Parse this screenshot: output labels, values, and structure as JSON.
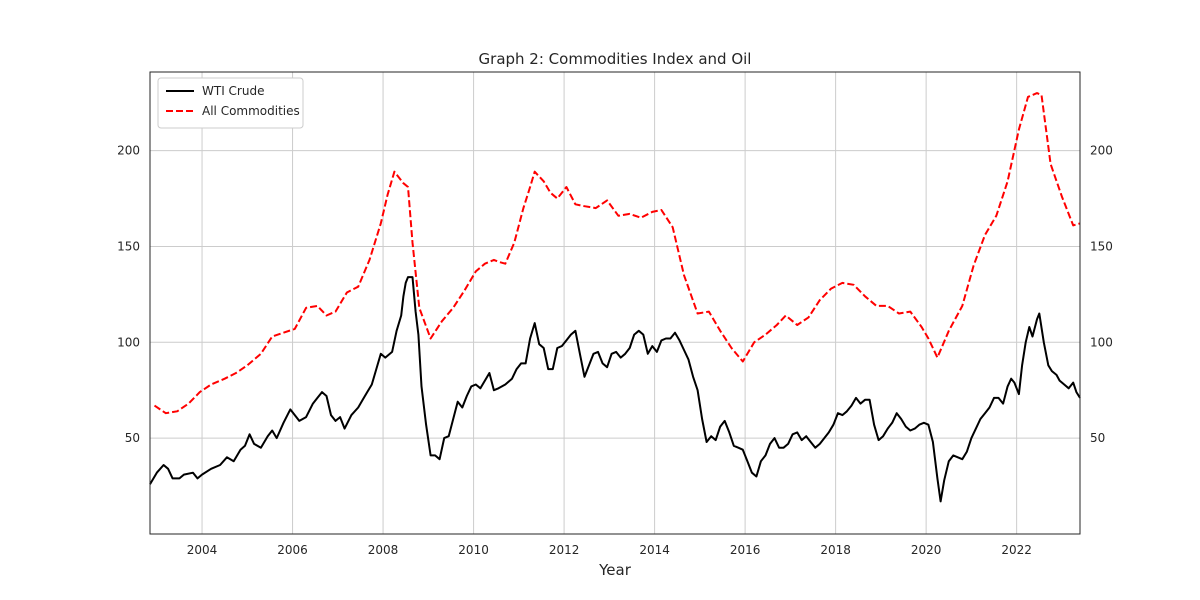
{
  "chart_data": {
    "type": "line",
    "title": "Graph 2: Commodities Index and Oil",
    "xlabel": "Year",
    "ylabel": "",
    "xlim": [
      2002.85,
      2023.4
    ],
    "ylim": [
      0,
      241
    ],
    "x_ticks": [
      2004,
      2006,
      2008,
      2010,
      2012,
      2014,
      2016,
      2018,
      2020,
      2022
    ],
    "y_ticks": [
      50,
      100,
      150,
      200
    ],
    "secondary_y_ticks": [
      50,
      100,
      150,
      200
    ],
    "grid": true,
    "legend_position": "top-left",
    "series": [
      {
        "name": "WTI Crude",
        "color": "#000000",
        "style": "solid",
        "points": [
          [
            2002.85,
            26
          ],
          [
            2003.0,
            32
          ],
          [
            2003.15,
            36
          ],
          [
            2003.25,
            34
          ],
          [
            2003.35,
            29
          ],
          [
            2003.5,
            29
          ],
          [
            2003.6,
            31
          ],
          [
            2003.8,
            32
          ],
          [
            2003.9,
            29
          ],
          [
            2004.0,
            31
          ],
          [
            2004.2,
            34
          ],
          [
            2004.4,
            36
          ],
          [
            2004.55,
            40
          ],
          [
            2004.7,
            38
          ],
          [
            2004.85,
            44
          ],
          [
            2004.95,
            46
          ],
          [
            2005.05,
            52
          ],
          [
            2005.15,
            47
          ],
          [
            2005.3,
            45
          ],
          [
            2005.45,
            51
          ],
          [
            2005.55,
            54
          ],
          [
            2005.65,
            50
          ],
          [
            2005.8,
            58
          ],
          [
            2005.95,
            65
          ],
          [
            2006.05,
            62
          ],
          [
            2006.15,
            59
          ],
          [
            2006.3,
            61
          ],
          [
            2006.45,
            68
          ],
          [
            2006.55,
            71
          ],
          [
            2006.65,
            74
          ],
          [
            2006.75,
            72
          ],
          [
            2006.85,
            62
          ],
          [
            2006.95,
            59
          ],
          [
            2007.05,
            61
          ],
          [
            2007.15,
            55
          ],
          [
            2007.3,
            62
          ],
          [
            2007.45,
            66
          ],
          [
            2007.55,
            70
          ],
          [
            2007.65,
            74
          ],
          [
            2007.75,
            78
          ],
          [
            2007.85,
            86
          ],
          [
            2007.95,
            94
          ],
          [
            2008.05,
            92
          ],
          [
            2008.2,
            95
          ],
          [
            2008.3,
            106
          ],
          [
            2008.4,
            114
          ],
          [
            2008.45,
            124
          ],
          [
            2008.5,
            131
          ],
          [
            2008.55,
            134
          ],
          [
            2008.65,
            134
          ],
          [
            2008.72,
            116
          ],
          [
            2008.78,
            104
          ],
          [
            2008.85,
            77
          ],
          [
            2008.95,
            57
          ],
          [
            2009.05,
            41
          ],
          [
            2009.15,
            41
          ],
          [
            2009.25,
            39
          ],
          [
            2009.35,
            50
          ],
          [
            2009.45,
            51
          ],
          [
            2009.55,
            60
          ],
          [
            2009.65,
            69
          ],
          [
            2009.75,
            66
          ],
          [
            2009.85,
            72
          ],
          [
            2009.95,
            77
          ],
          [
            2010.05,
            78
          ],
          [
            2010.15,
            76
          ],
          [
            2010.25,
            80
          ],
          [
            2010.35,
            84
          ],
          [
            2010.45,
            75
          ],
          [
            2010.55,
            76
          ],
          [
            2010.7,
            78
          ],
          [
            2010.85,
            81
          ],
          [
            2010.95,
            86
          ],
          [
            2011.05,
            89
          ],
          [
            2011.15,
            89
          ],
          [
            2011.25,
            102
          ],
          [
            2011.35,
            110
          ],
          [
            2011.45,
            99
          ],
          [
            2011.55,
            97
          ],
          [
            2011.65,
            86
          ],
          [
            2011.75,
            86
          ],
          [
            2011.85,
            97
          ],
          [
            2011.95,
            98
          ],
          [
            2012.05,
            101
          ],
          [
            2012.15,
            104
          ],
          [
            2012.25,
            106
          ],
          [
            2012.35,
            94
          ],
          [
            2012.45,
            82
          ],
          [
            2012.55,
            88
          ],
          [
            2012.65,
            94
          ],
          [
            2012.75,
            95
          ],
          [
            2012.85,
            89
          ],
          [
            2012.95,
            87
          ],
          [
            2013.05,
            94
          ],
          [
            2013.15,
            95
          ],
          [
            2013.25,
            92
          ],
          [
            2013.35,
            94
          ],
          [
            2013.45,
            97
          ],
          [
            2013.55,
            104
          ],
          [
            2013.65,
            106
          ],
          [
            2013.75,
            104
          ],
          [
            2013.85,
            94
          ],
          [
            2013.95,
            98
          ],
          [
            2014.05,
            95
          ],
          [
            2014.15,
            101
          ],
          [
            2014.25,
            102
          ],
          [
            2014.35,
            102
          ],
          [
            2014.45,
            105
          ],
          [
            2014.55,
            101
          ],
          [
            2014.65,
            96
          ],
          [
            2014.75,
            91
          ],
          [
            2014.85,
            82
          ],
          [
            2014.95,
            75
          ],
          [
            2015.05,
            60
          ],
          [
            2015.15,
            48
          ],
          [
            2015.25,
            51
          ],
          [
            2015.35,
            49
          ],
          [
            2015.45,
            56
          ],
          [
            2015.55,
            59
          ],
          [
            2015.65,
            53
          ],
          [
            2015.75,
            46
          ],
          [
            2015.85,
            45
          ],
          [
            2015.95,
            44
          ],
          [
            2016.05,
            38
          ],
          [
            2016.15,
            32
          ],
          [
            2016.25,
            30
          ],
          [
            2016.35,
            38
          ],
          [
            2016.45,
            41
          ],
          [
            2016.55,
            47
          ],
          [
            2016.65,
            50
          ],
          [
            2016.75,
            45
          ],
          [
            2016.85,
            45
          ],
          [
            2016.95,
            47
          ],
          [
            2017.05,
            52
          ],
          [
            2017.15,
            53
          ],
          [
            2017.25,
            49
          ],
          [
            2017.35,
            51
          ],
          [
            2017.45,
            48
          ],
          [
            2017.55,
            45
          ],
          [
            2017.65,
            47
          ],
          [
            2017.75,
            50
          ],
          [
            2017.85,
            53
          ],
          [
            2017.95,
            57
          ],
          [
            2018.05,
            63
          ],
          [
            2018.15,
            62
          ],
          [
            2018.25,
            64
          ],
          [
            2018.35,
            67
          ],
          [
            2018.45,
            71
          ],
          [
            2018.55,
            68
          ],
          [
            2018.65,
            70
          ],
          [
            2018.75,
            70
          ],
          [
            2018.85,
            57
          ],
          [
            2018.95,
            49
          ],
          [
            2019.05,
            51
          ],
          [
            2019.15,
            55
          ],
          [
            2019.25,
            58
          ],
          [
            2019.35,
            63
          ],
          [
            2019.45,
            60
          ],
          [
            2019.55,
            56
          ],
          [
            2019.65,
            54
          ],
          [
            2019.75,
            55
          ],
          [
            2019.85,
            57
          ],
          [
            2019.95,
            58
          ],
          [
            2020.05,
            57
          ],
          [
            2020.15,
            48
          ],
          [
            2020.25,
            29
          ],
          [
            2020.32,
            17
          ],
          [
            2020.4,
            28
          ],
          [
            2020.5,
            38
          ],
          [
            2020.6,
            41
          ],
          [
            2020.7,
            40
          ],
          [
            2020.8,
            39
          ],
          [
            2020.9,
            43
          ],
          [
            2021.0,
            50
          ],
          [
            2021.1,
            55
          ],
          [
            2021.2,
            60
          ],
          [
            2021.3,
            63
          ],
          [
            2021.4,
            66
          ],
          [
            2021.5,
            71
          ],
          [
            2021.6,
            71
          ],
          [
            2021.7,
            68
          ],
          [
            2021.8,
            77
          ],
          [
            2021.88,
            81
          ],
          [
            2021.95,
            79
          ],
          [
            2022.05,
            73
          ],
          [
            2022.12,
            88
          ],
          [
            2022.2,
            100
          ],
          [
            2022.28,
            108
          ],
          [
            2022.35,
            103
          ],
          [
            2022.45,
            112
          ],
          [
            2022.5,
            115
          ],
          [
            2022.6,
            100
          ],
          [
            2022.7,
            88
          ],
          [
            2022.78,
            85
          ],
          [
            2022.88,
            83
          ],
          [
            2022.95,
            80
          ],
          [
            2023.05,
            78
          ],
          [
            2023.15,
            76
          ],
          [
            2023.25,
            79
          ],
          [
            2023.32,
            74
          ],
          [
            2023.4,
            71
          ]
        ]
      },
      {
        "name": "All Commodities",
        "color": "#ff0000",
        "style": "dashed",
        "points": [
          [
            2002.95,
            67
          ],
          [
            2003.2,
            63
          ],
          [
            2003.45,
            64
          ],
          [
            2003.7,
            68
          ],
          [
            2003.95,
            74
          ],
          [
            2004.2,
            78
          ],
          [
            2004.5,
            81
          ],
          [
            2004.75,
            84
          ],
          [
            2005.0,
            88
          ],
          [
            2005.3,
            94
          ],
          [
            2005.55,
            103
          ],
          [
            2005.8,
            105
          ],
          [
            2006.05,
            107
          ],
          [
            2006.3,
            118
          ],
          [
            2006.55,
            119
          ],
          [
            2006.75,
            114
          ],
          [
            2006.95,
            116
          ],
          [
            2007.2,
            126
          ],
          [
            2007.45,
            129
          ],
          [
            2007.7,
            143
          ],
          [
            2007.95,
            162
          ],
          [
            2008.1,
            177
          ],
          [
            2008.25,
            189
          ],
          [
            2008.45,
            183
          ],
          [
            2008.55,
            181
          ],
          [
            2008.65,
            152
          ],
          [
            2008.8,
            118
          ],
          [
            2009.05,
            102
          ],
          [
            2009.3,
            111
          ],
          [
            2009.55,
            118
          ],
          [
            2009.8,
            127
          ],
          [
            2010.05,
            137
          ],
          [
            2010.25,
            141
          ],
          [
            2010.45,
            143
          ],
          [
            2010.55,
            142
          ],
          [
            2010.7,
            141
          ],
          [
            2010.9,
            152
          ],
          [
            2011.1,
            170
          ],
          [
            2011.25,
            181
          ],
          [
            2011.35,
            189
          ],
          [
            2011.55,
            184
          ],
          [
            2011.7,
            178
          ],
          [
            2011.85,
            175
          ],
          [
            2012.05,
            181
          ],
          [
            2012.25,
            172
          ],
          [
            2012.45,
            171
          ],
          [
            2012.7,
            170
          ],
          [
            2012.95,
            174
          ],
          [
            2013.2,
            166
          ],
          [
            2013.45,
            167
          ],
          [
            2013.7,
            165
          ],
          [
            2013.95,
            168
          ],
          [
            2014.15,
            169
          ],
          [
            2014.4,
            160
          ],
          [
            2014.65,
            135
          ],
          [
            2014.95,
            115
          ],
          [
            2015.2,
            116
          ],
          [
            2015.45,
            106
          ],
          [
            2015.7,
            97
          ],
          [
            2015.95,
            90
          ],
          [
            2016.2,
            100
          ],
          [
            2016.45,
            104
          ],
          [
            2016.7,
            109
          ],
          [
            2016.9,
            114
          ],
          [
            2017.15,
            109
          ],
          [
            2017.4,
            113
          ],
          [
            2017.65,
            122
          ],
          [
            2017.9,
            128
          ],
          [
            2018.15,
            131
          ],
          [
            2018.4,
            130
          ],
          [
            2018.65,
            124
          ],
          [
            2018.9,
            119
          ],
          [
            2019.15,
            119
          ],
          [
            2019.4,
            115
          ],
          [
            2019.65,
            116
          ],
          [
            2019.9,
            108
          ],
          [
            2020.05,
            102
          ],
          [
            2020.25,
            92
          ],
          [
            2020.5,
            106
          ],
          [
            2020.8,
            119
          ],
          [
            2021.05,
            140
          ],
          [
            2021.3,
            156
          ],
          [
            2021.55,
            166
          ],
          [
            2021.8,
            184
          ],
          [
            2022.05,
            211
          ],
          [
            2022.25,
            228
          ],
          [
            2022.45,
            230
          ],
          [
            2022.55,
            229
          ],
          [
            2022.75,
            193
          ],
          [
            2023.0,
            176
          ],
          [
            2023.25,
            161
          ],
          [
            2023.4,
            162
          ]
        ]
      }
    ]
  }
}
